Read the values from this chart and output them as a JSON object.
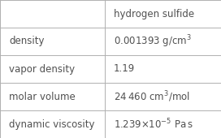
{
  "header_val": "hydrogen sulfide",
  "rows": [
    {
      "label": "density",
      "value": "0.001393 g/cm$^3$"
    },
    {
      "label": "vapor density",
      "value": "1.19"
    },
    {
      "label": "molar volume",
      "value": "24 460 cm$^3$/mol"
    },
    {
      "label": "dynamic viscosity",
      "value": "1.239×10$^{-5}$ Pa s"
    }
  ],
  "bg_color": "#ffffff",
  "line_color": "#b0b0b0",
  "text_color": "#505050",
  "font_size": 8.5,
  "col_split": 0.475
}
